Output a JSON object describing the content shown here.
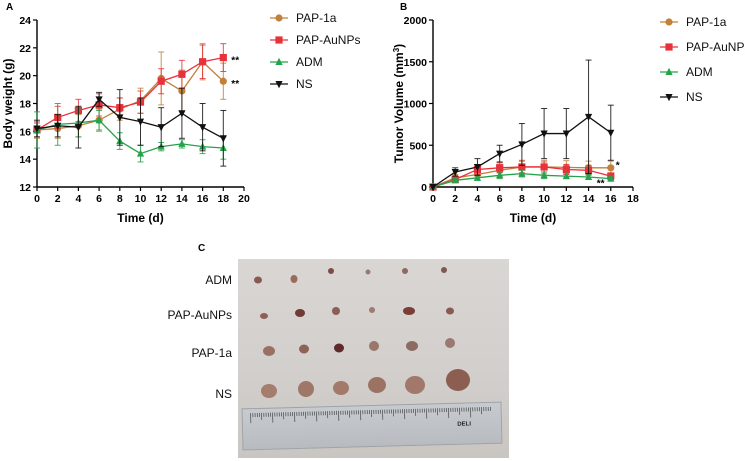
{
  "figure": {
    "panel_a_letter": "A",
    "panel_b_letter": "B",
    "panel_c_letter": "C"
  },
  "chart_data": [
    {
      "type": "line",
      "panel": "A",
      "xlabel": "Time (d)",
      "ylabel": "Body weight (g)",
      "xlim": [
        0,
        20
      ],
      "ylim": [
        12,
        24
      ],
      "xticks": [
        0,
        2,
        4,
        6,
        8,
        10,
        12,
        14,
        16,
        18,
        20
      ],
      "yticks": [
        12,
        14,
        16,
        18,
        20,
        22,
        24
      ],
      "x": [
        0,
        2,
        4,
        6,
        8,
        10,
        12,
        14,
        16,
        18
      ],
      "series": [
        {
          "name": "PAP-1a",
          "color": "#c0813a",
          "marker": "circle",
          "values": [
            16.1,
            16.2,
            16.4,
            16.8,
            17.6,
            18.2,
            19.8,
            18.9,
            21.0,
            19.6
          ],
          "errors": [
            0.6,
            0.7,
            0.8,
            0.8,
            0.8,
            0.9,
            1.9,
            1.5,
            1.3,
            1.3
          ]
        },
        {
          "name": "PAP-AuNPs",
          "color": "#e8323b",
          "marker": "square",
          "values": [
            16.1,
            17.0,
            17.5,
            17.9,
            17.7,
            18.1,
            19.6,
            20.1,
            21.0,
            21.3
          ],
          "errors": [
            0.5,
            0.8,
            0.8,
            0.8,
            0.7,
            0.8,
            0.9,
            1.0,
            1.2,
            1.0
          ]
        },
        {
          "name": "ADM",
          "color": "#25a34a",
          "marker": "triangle",
          "values": [
            16.1,
            16.5,
            16.6,
            16.8,
            15.3,
            14.4,
            14.9,
            15.1,
            14.9,
            14.8
          ],
          "errors": [
            1.3,
            1.5,
            1.0,
            0.7,
            0.6,
            0.6,
            0.3,
            0.3,
            0.5,
            0.8
          ]
        },
        {
          "name": "NS",
          "color": "#111111",
          "marker": "triangle-down",
          "values": [
            16.2,
            16.4,
            16.3,
            18.3,
            17.0,
            16.7,
            16.3,
            17.3,
            16.3,
            15.5
          ],
          "errors": [
            0.6,
            0.8,
            1.5,
            0.5,
            2.0,
            1.7,
            1.4,
            1.8,
            1.7,
            2.0
          ]
        }
      ],
      "annotations": [
        {
          "text": "**",
          "x": 18,
          "y": 21.3
        },
        {
          "text": "**",
          "x": 18,
          "y": 19.6
        }
      ]
    },
    {
      "type": "line",
      "panel": "B",
      "xlabel": "Time (d)",
      "ylabel_text": "Tumor Volume (mm",
      "ylabel_sup": "3",
      "ylabel_end": ")",
      "xlim": [
        0,
        18
      ],
      "ylim": [
        0,
        2000
      ],
      "xticks": [
        0,
        2,
        4,
        6,
        8,
        10,
        12,
        14,
        16,
        18
      ],
      "yticks": [
        0,
        500,
        1000,
        1500,
        2000
      ],
      "x": [
        0,
        2,
        4,
        6,
        8,
        10,
        12,
        14,
        16
      ],
      "series": [
        {
          "name": "PAP-1a",
          "color": "#c0813a",
          "marker": "circle",
          "values": [
            0,
            110,
            150,
            200,
            240,
            240,
            235,
            230,
            230
          ],
          "errors": [
            0,
            40,
            60,
            70,
            80,
            80,
            80,
            80,
            80
          ]
        },
        {
          "name": "PAP-AuNPs",
          "color": "#e8323b",
          "marker": "square",
          "values": [
            0,
            90,
            210,
            230,
            240,
            240,
            210,
            200,
            130
          ],
          "errors": [
            0,
            30,
            60,
            60,
            70,
            60,
            60,
            60,
            40
          ]
        },
        {
          "name": "ADM",
          "color": "#25a34a",
          "marker": "triangle",
          "values": [
            0,
            80,
            110,
            140,
            160,
            140,
            130,
            120,
            100
          ],
          "errors": [
            0,
            20,
            30,
            40,
            40,
            40,
            30,
            30,
            30
          ]
        },
        {
          "name": "NS",
          "color": "#111111",
          "marker": "triangle-down",
          "values": [
            0,
            180,
            240,
            400,
            510,
            640,
            640,
            840,
            650
          ],
          "errors": [
            0,
            50,
            100,
            100,
            250,
            300,
            300,
            680,
            330
          ]
        }
      ],
      "annotations": [
        {
          "text": "*",
          "x": 16,
          "y": 260
        },
        {
          "text": "**",
          "x": 16,
          "y": 40
        }
      ]
    }
  ],
  "photo_panel": {
    "rows": [
      "ADM",
      "PAP-AuNPs",
      "PAP-1a",
      "NS"
    ],
    "ruler_brand": "DELI"
  }
}
